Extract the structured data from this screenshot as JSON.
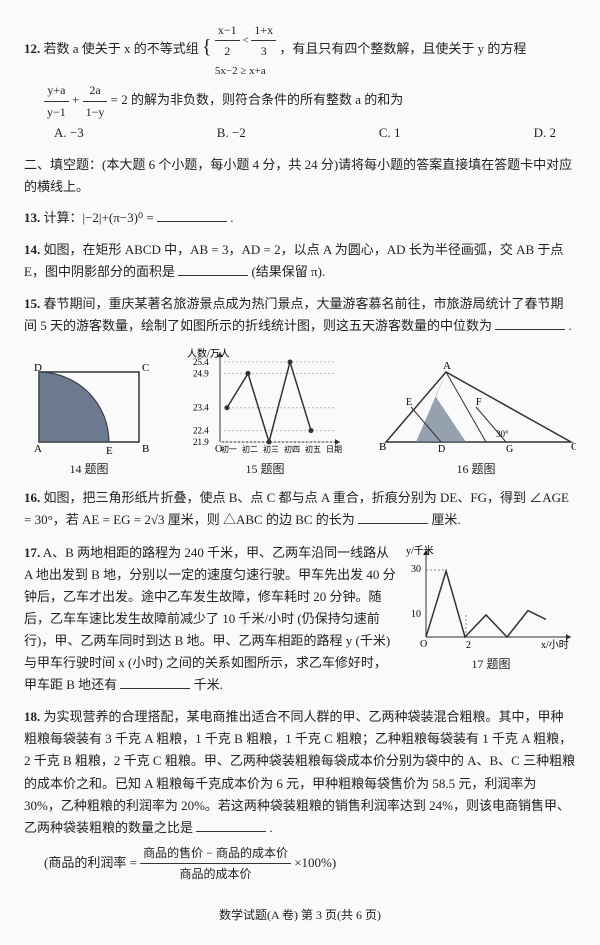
{
  "q12": {
    "num": "12.",
    "text_a": "若数 a 使关于 x 的不等式组 ",
    "sys_line1_l": "x−1",
    "sys_line1_r": "1+x",
    "sys_line1_denL": "2",
    "sys_line1_denR": "3",
    "sys_op": "<",
    "sys_line2": "5x−2 ≥ x+a",
    "text_b": "，有且只有四个整数解，且使关于 y 的方程",
    "frac1n": "y+a",
    "frac1d": "y−1",
    "plus": "+",
    "frac2n": "2a",
    "frac2d": "1−y",
    "eq": "= 2 的解为非负数，则符合条件的所有整数 a 的和为",
    "A": "A. −3",
    "B": "B. −2",
    "C": "C. 1",
    "D": "D. 2"
  },
  "section2": "二、填空题：(本大题 6 个小题，每小题 4 分，共 24 分)请将每小题的答案直接填在答题卡中对应的横线上。",
  "q13": {
    "num": "13.",
    "text": "计算：|−2|+(π−3)⁰ = ",
    "trail": "."
  },
  "q14": {
    "num": "14.",
    "text": "如图，在矩形 ABCD 中，AB = 3，AD = 2，以点 A 为圆心，AD 长为半径画弧，交 AB 于点 E，图中阴影部分的面积是",
    "trail": "(结果保留 π)."
  },
  "q15": {
    "num": "15.",
    "text": "春节期间，重庆某著名旅游景点成为热门景点，大量游客慕名前往，市旅游局统计了春节期间 5 天的游客数量，绘制了如图所示的折线统计图，则这五天游客数量的中位数为",
    "trail": "."
  },
  "fig14": {
    "cap": "14 题图",
    "D": "D",
    "C": "C",
    "A": "A",
    "E": "E",
    "B": "B"
  },
  "fig15": {
    "cap": "15 题图",
    "y": "人数/万人",
    "yticks": [
      "25.4",
      "24.9",
      "23.4",
      "22.4",
      "21.9"
    ],
    "x": [
      "初一",
      "初二",
      "初三",
      "初四",
      "初五",
      "日期"
    ],
    "pts": [
      [
        0,
        23.4
      ],
      [
        1,
        24.9
      ],
      [
        2,
        21.9
      ],
      [
        3,
        25.4
      ],
      [
        4,
        22.4
      ]
    ]
  },
  "fig16": {
    "cap": "16 题图",
    "A": "A",
    "B": "B",
    "C": "C",
    "D": "D",
    "E": "E",
    "F": "F",
    "G": "G",
    "ang": "30°"
  },
  "q16": {
    "num": "16.",
    "text": "如图，把三角形纸片折叠，使点 B、点 C 都与点 A 重合，折痕分别为 DE、FG，得到 ∠AGE = 30°，若 AE = EG = 2√3 厘米，则 △ABC 的边 BC 的长为",
    "trail": "厘米."
  },
  "q17": {
    "num": "17.",
    "text_a": "A、B 两地相距的路程为 240 千米，甲、乙两车沿同一线路从 A 地出发到 B 地，分别以一定的速度匀速行驶。甲车先出发 40 分钟后，乙车才出发。途中乙车发生故障，修车耗时 20 分钟。随后，乙车车速比发生故障前减少了 10 千米/小时 (仍保持匀速前行)，甲、乙两车同时到达 B 地。甲、乙两车相距的路程 y (千米) 与甲车行驶时间 x (小时) 之间的关系如图所示，求乙车修好时，甲车距 B 地还有",
    "trail": "千米."
  },
  "fig17": {
    "cap": "17 题图",
    "y": "y/千米",
    "x": "x/小时",
    "ytick": "30",
    "ytick2": "10",
    "xtick": "2",
    "pts": [
      [
        0,
        0
      ],
      [
        0.67,
        30
      ],
      [
        1.3,
        0
      ],
      [
        2,
        10
      ],
      [
        2.7,
        0
      ],
      [
        3.4,
        12
      ],
      [
        4,
        8
      ]
    ]
  },
  "q18": {
    "num": "18.",
    "text": "为实现营养的合理搭配，某电商推出适合不同人群的甲、乙两种袋装混合粗粮。其中，甲种粗粮每袋装有 3 千克 A 粗粮，1 千克 B 粗粮，1 千克 C 粗粮；乙种粗粮每袋装有 1 千克 A 粗粮，2 千克 B 粗粮，2 千克 C 粗粮。甲、乙两种袋装粗粮每袋成本价分别为袋中的 A、B、C 三种粗粮的成本价之和。已知 A 粗粮每千克成本价为 6 元，甲种粗粮每袋售价为 58.5 元，利润率为 30%，乙种粗粮的利润率为 20%。若这两种袋装粗粮的销售利润率达到 24%，则该电商销售甲、乙两种袋装粗粮的数量之比是",
    "trail": "."
  },
  "note": {
    "a": "(商品的利润率 = ",
    "n": "商品的售价 − 商品的成本价",
    "d": "商品的成本价",
    "b": " ×100%)"
  },
  "footer": "数学试题(A 卷)  第 3 页(共 6 页)"
}
